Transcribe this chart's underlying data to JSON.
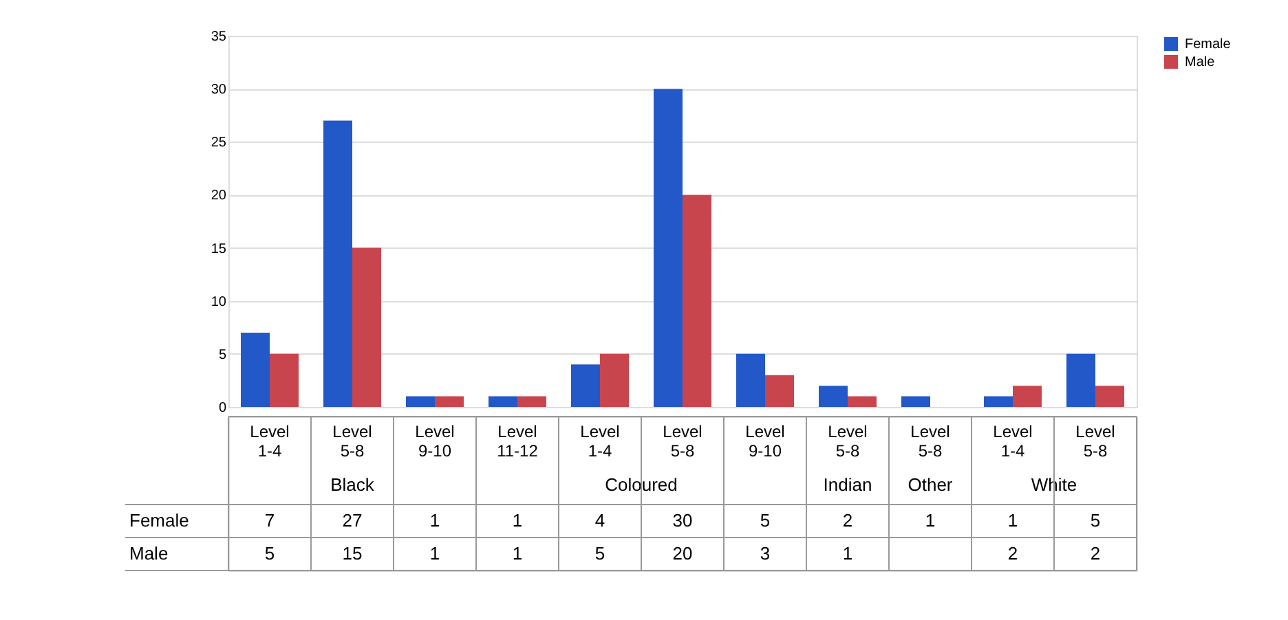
{
  "chart_data": {
    "type": "bar",
    "categories": [
      "Level 1-4",
      "Level 5-8",
      "Level 9-10",
      "Level 11-12",
      "Level 1-4",
      "Level 5-8",
      "Level 9-10",
      "Level 5-8",
      "Level 5-8",
      "Level 1-4",
      "Level 5-8"
    ],
    "series": [
      {
        "name": "Female",
        "color": "#2258c8",
        "values": [
          7,
          27,
          1,
          1,
          4,
          30,
          5,
          2,
          1,
          1,
          5
        ]
      },
      {
        "name": "Male",
        "color": "#c8454d",
        "values": [
          5,
          15,
          1,
          1,
          5,
          20,
          3,
          1,
          null,
          2,
          2
        ]
      }
    ],
    "annotations": [
      "Black",
      "Coloured",
      "Indian",
      "Other",
      "White"
    ],
    "ylim": [
      0,
      35
    ],
    "yticks": [
      0,
      5,
      10,
      15,
      20,
      25,
      30,
      35
    ],
    "grid": "y",
    "legend": "right",
    "data_labels": true
  }
}
